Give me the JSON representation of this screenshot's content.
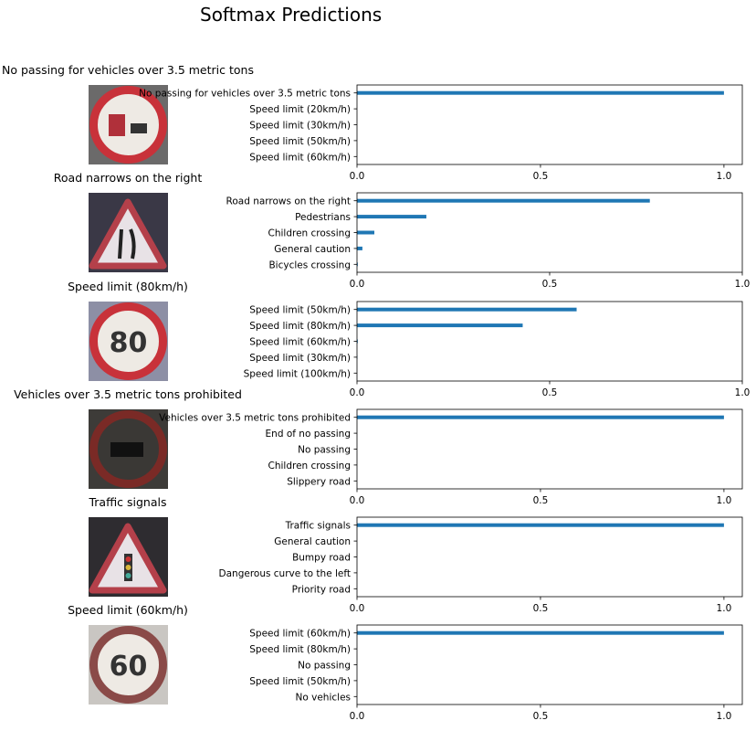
{
  "suptitle": "Softmax Predictions",
  "colors": {
    "bar": "#1f77b4",
    "axis": "#000000"
  },
  "panels": [
    {
      "sign_title": "No passing for vehicles over 3.5 metric tons",
      "sign_icon": "no-passing-trucks-sign",
      "chart_data": {
        "type": "bar",
        "orientation": "horizontal",
        "categories": [
          "No passing for vehicles over 3.5 metric tons",
          "Speed limit (20km/h)",
          "Speed limit (30km/h)",
          "Speed limit (50km/h)",
          "Speed limit (60km/h)"
        ],
        "values": [
          1.0,
          0.0,
          0.0,
          0.0,
          0.0
        ],
        "xlim": [
          0,
          1.05
        ],
        "xticks": [
          0.0,
          0.5,
          1.0
        ],
        "xtick_labels": [
          "0.0",
          "0.5",
          "1.0"
        ]
      }
    },
    {
      "sign_title": "Road narrows on the right",
      "sign_icon": "road-narrows-sign",
      "chart_data": {
        "type": "bar",
        "orientation": "horizontal",
        "categories": [
          "Road narrows on the right",
          "Pedestrians",
          "Children crossing",
          "General caution",
          "Bicycles crossing"
        ],
        "values": [
          0.76,
          0.18,
          0.045,
          0.014,
          0.002
        ],
        "xlim": [
          0,
          1.0
        ],
        "xticks": [
          0.0,
          0.5,
          1.0
        ],
        "xtick_labels": [
          "0.0",
          "0.5",
          "1.0"
        ]
      }
    },
    {
      "sign_title": "Speed limit (80km/h)",
      "sign_icon": "speed-limit-80-sign",
      "chart_data": {
        "type": "bar",
        "orientation": "horizontal",
        "categories": [
          "Speed limit (50km/h)",
          "Speed limit (80km/h)",
          "Speed limit (60km/h)",
          "Speed limit (30km/h)",
          "Speed limit (100km/h)"
        ],
        "values": [
          0.57,
          0.43,
          0.002,
          0.001,
          0.0
        ],
        "xlim": [
          0,
          1.0
        ],
        "xticks": [
          0.0,
          0.5,
          1.0
        ],
        "xtick_labels": [
          "0.0",
          "0.5",
          "1.0"
        ]
      }
    },
    {
      "sign_title": "Vehicles over 3.5 metric tons prohibited",
      "sign_icon": "trucks-prohibited-sign",
      "chart_data": {
        "type": "bar",
        "orientation": "horizontal",
        "categories": [
          "Vehicles over 3.5 metric tons prohibited",
          "End of no passing",
          "No passing",
          "Children crossing",
          "Slippery road"
        ],
        "values": [
          1.0,
          0.0,
          0.0,
          0.0,
          0.0
        ],
        "xlim": [
          0,
          1.05
        ],
        "xticks": [
          0.0,
          0.5,
          1.0
        ],
        "xtick_labels": [
          "0.0",
          "0.5",
          "1.0"
        ]
      }
    },
    {
      "sign_title": "Traffic signals",
      "sign_icon": "traffic-signals-sign",
      "chart_data": {
        "type": "bar",
        "orientation": "horizontal",
        "categories": [
          "Traffic signals",
          "General caution",
          "Bumpy road",
          "Dangerous curve to the left",
          "Priority road"
        ],
        "values": [
          1.0,
          0.0,
          0.0,
          0.0,
          0.0
        ],
        "xlim": [
          0,
          1.05
        ],
        "xticks": [
          0.0,
          0.5,
          1.0
        ],
        "xtick_labels": [
          "0.0",
          "0.5",
          "1.0"
        ]
      }
    },
    {
      "sign_title": "Speed limit (60km/h)",
      "sign_icon": "speed-limit-60-sign",
      "chart_data": {
        "type": "bar",
        "orientation": "horizontal",
        "categories": [
          "Speed limit (60km/h)",
          "Speed limit (80km/h)",
          "No passing",
          "Speed limit (50km/h)",
          "No vehicles"
        ],
        "values": [
          1.0,
          0.0,
          0.0,
          0.0,
          0.0
        ],
        "xlim": [
          0,
          1.05
        ],
        "xticks": [
          0.0,
          0.5,
          1.0
        ],
        "xtick_labels": [
          "0.0",
          "0.5",
          "1.0"
        ]
      }
    }
  ]
}
